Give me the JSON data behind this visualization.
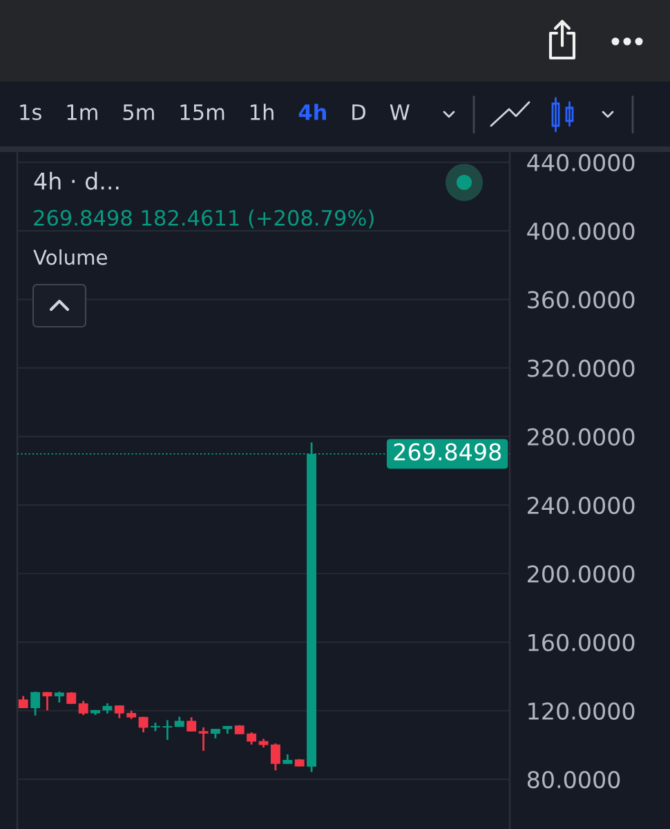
{
  "chart_data": {
    "type": "candlestick",
    "title": "4h · d...",
    "subtitle": "269.8498 182.4611 (+208.79%)",
    "annotations": [
      "1s",
      "1m",
      "5m",
      "15m",
      "1h",
      "4h",
      "D",
      "W",
      "Volume"
    ],
    "categories": [
      null,
      null,
      null,
      null,
      null,
      null,
      null,
      null,
      null,
      null,
      null,
      null,
      null,
      null,
      null,
      null,
      null,
      null,
      null,
      null,
      null,
      null,
      null,
      null,
      null,
      null,
      null,
      null,
      null,
      null,
      null,
      null,
      null,
      null,
      null,
      null,
      null,
      null,
      null,
      null,
      null
    ],
    "ohlc": [
      [
        126.6,
        128.6,
        121.5,
        121.5
      ],
      [
        121.5,
        131.1,
        117.2,
        130.9
      ],
      [
        130.9,
        130.9,
        120.2,
        128.4
      ],
      [
        128.4,
        131.1,
        124.8,
        130.6
      ],
      [
        130.6,
        130.8,
        124.0,
        124.0
      ],
      [
        124.3,
        125.8,
        117.5,
        118.4
      ],
      [
        118.5,
        120.4,
        117.5,
        120.4
      ],
      [
        120.2,
        124.4,
        118.4,
        122.8
      ],
      [
        123.1,
        123.1,
        115.7,
        118.4
      ],
      [
        118.7,
        120.0,
        115.2,
        116.1
      ],
      [
        116.4,
        116.4,
        107.4,
        110.1
      ],
      [
        110.3,
        113.0,
        108.1,
        111.1
      ],
      [
        110.2,
        114.5,
        103.0,
        111.0
      ],
      [
        110.6,
        116.5,
        110.6,
        114.1
      ],
      [
        114.1,
        116.2,
        107.9,
        107.9
      ],
      [
        108.1,
        110.3,
        96.6,
        106.7
      ],
      [
        106.6,
        109.4,
        103.9,
        109.4
      ],
      [
        109.3,
        111.1,
        106.6,
        111.1
      ],
      [
        111.4,
        111.6,
        106.3,
        106.3
      ],
      [
        106.7,
        107.4,
        100.3,
        102.0
      ],
      [
        102.3,
        103.6,
        98.6,
        100.0
      ],
      [
        100.3,
        100.9,
        85.2,
        89.0
      ],
      [
        89.0,
        94.6,
        89.0,
        91.3
      ],
      [
        91.6,
        91.8,
        87.5,
        87.5
      ],
      [
        87.4,
        276.5,
        84.3,
        269.8498
      ],
      null,
      null,
      null,
      null,
      null,
      null,
      null,
      null,
      null,
      null,
      null,
      null,
      null,
      null,
      null,
      null
    ],
    "colors": [
      "#f23645",
      "#089981",
      "#f23645",
      "#089981",
      "#f23645",
      "#f23645",
      "#089981",
      "#089981",
      "#f23645",
      "#f23645",
      "#f23645",
      "#089981",
      "#089981",
      "#089981",
      "#f23645",
      "#f23645",
      "#089981",
      "#089981",
      "#f23645",
      "#f23645",
      "#f23645",
      "#f23645",
      "#089981",
      "#f23645",
      "#089981",
      null,
      null,
      null,
      null,
      null,
      null,
      null,
      null,
      null,
      null,
      null,
      null,
      null,
      null,
      null,
      null
    ],
    "ylim": [
      51,
      446
    ],
    "yticks": [
      {
        "value": 80,
        "label": "80.0000"
      },
      {
        "value": 120,
        "label": "120.0000"
      },
      {
        "value": 160,
        "label": "160.0000"
      },
      {
        "value": 200,
        "label": "200.0000"
      },
      {
        "value": 240,
        "label": "240.0000"
      },
      {
        "value": 280,
        "label": "280.0000"
      },
      {
        "value": 320,
        "label": "320.0000"
      },
      {
        "value": 360,
        "label": "360.0000"
      },
      {
        "value": 400,
        "label": "400.0000"
      },
      {
        "value": 440,
        "label": "440.0000"
      }
    ],
    "ref_lines": [
      {
        "axis": "y",
        "value": 269.8498,
        "label": "269.8498",
        "color": "#089981",
        "line_style": "dotted"
      }
    ],
    "grid": true,
    "tick_labels": "y"
  }
}
